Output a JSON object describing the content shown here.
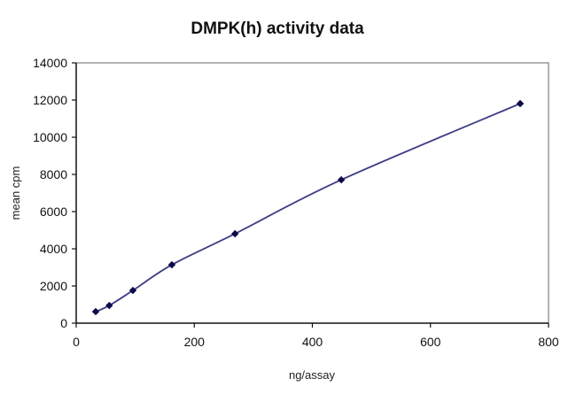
{
  "chart_data": {
    "type": "line",
    "title": "DMPK(h) activity data",
    "xlabel": "ng/assay",
    "ylabel": "mean cpm",
    "xlim": [
      0,
      800
    ],
    "ylim": [
      0,
      14000
    ],
    "x_ticks": [
      0,
      200,
      400,
      600,
      800
    ],
    "y_ticks": [
      0,
      2000,
      4000,
      6000,
      8000,
      10000,
      12000,
      14000
    ],
    "grid": false,
    "legend": null,
    "series": [
      {
        "name": "DMPK(h)",
        "color": "#3b3b99",
        "marker": "diamond",
        "marker_color": "#0a0a50",
        "x": [
          33,
          56,
          96,
          162,
          269,
          449,
          752
        ],
        "values": [
          620,
          950,
          1760,
          3140,
          4810,
          7710,
          11810
        ]
      }
    ]
  }
}
